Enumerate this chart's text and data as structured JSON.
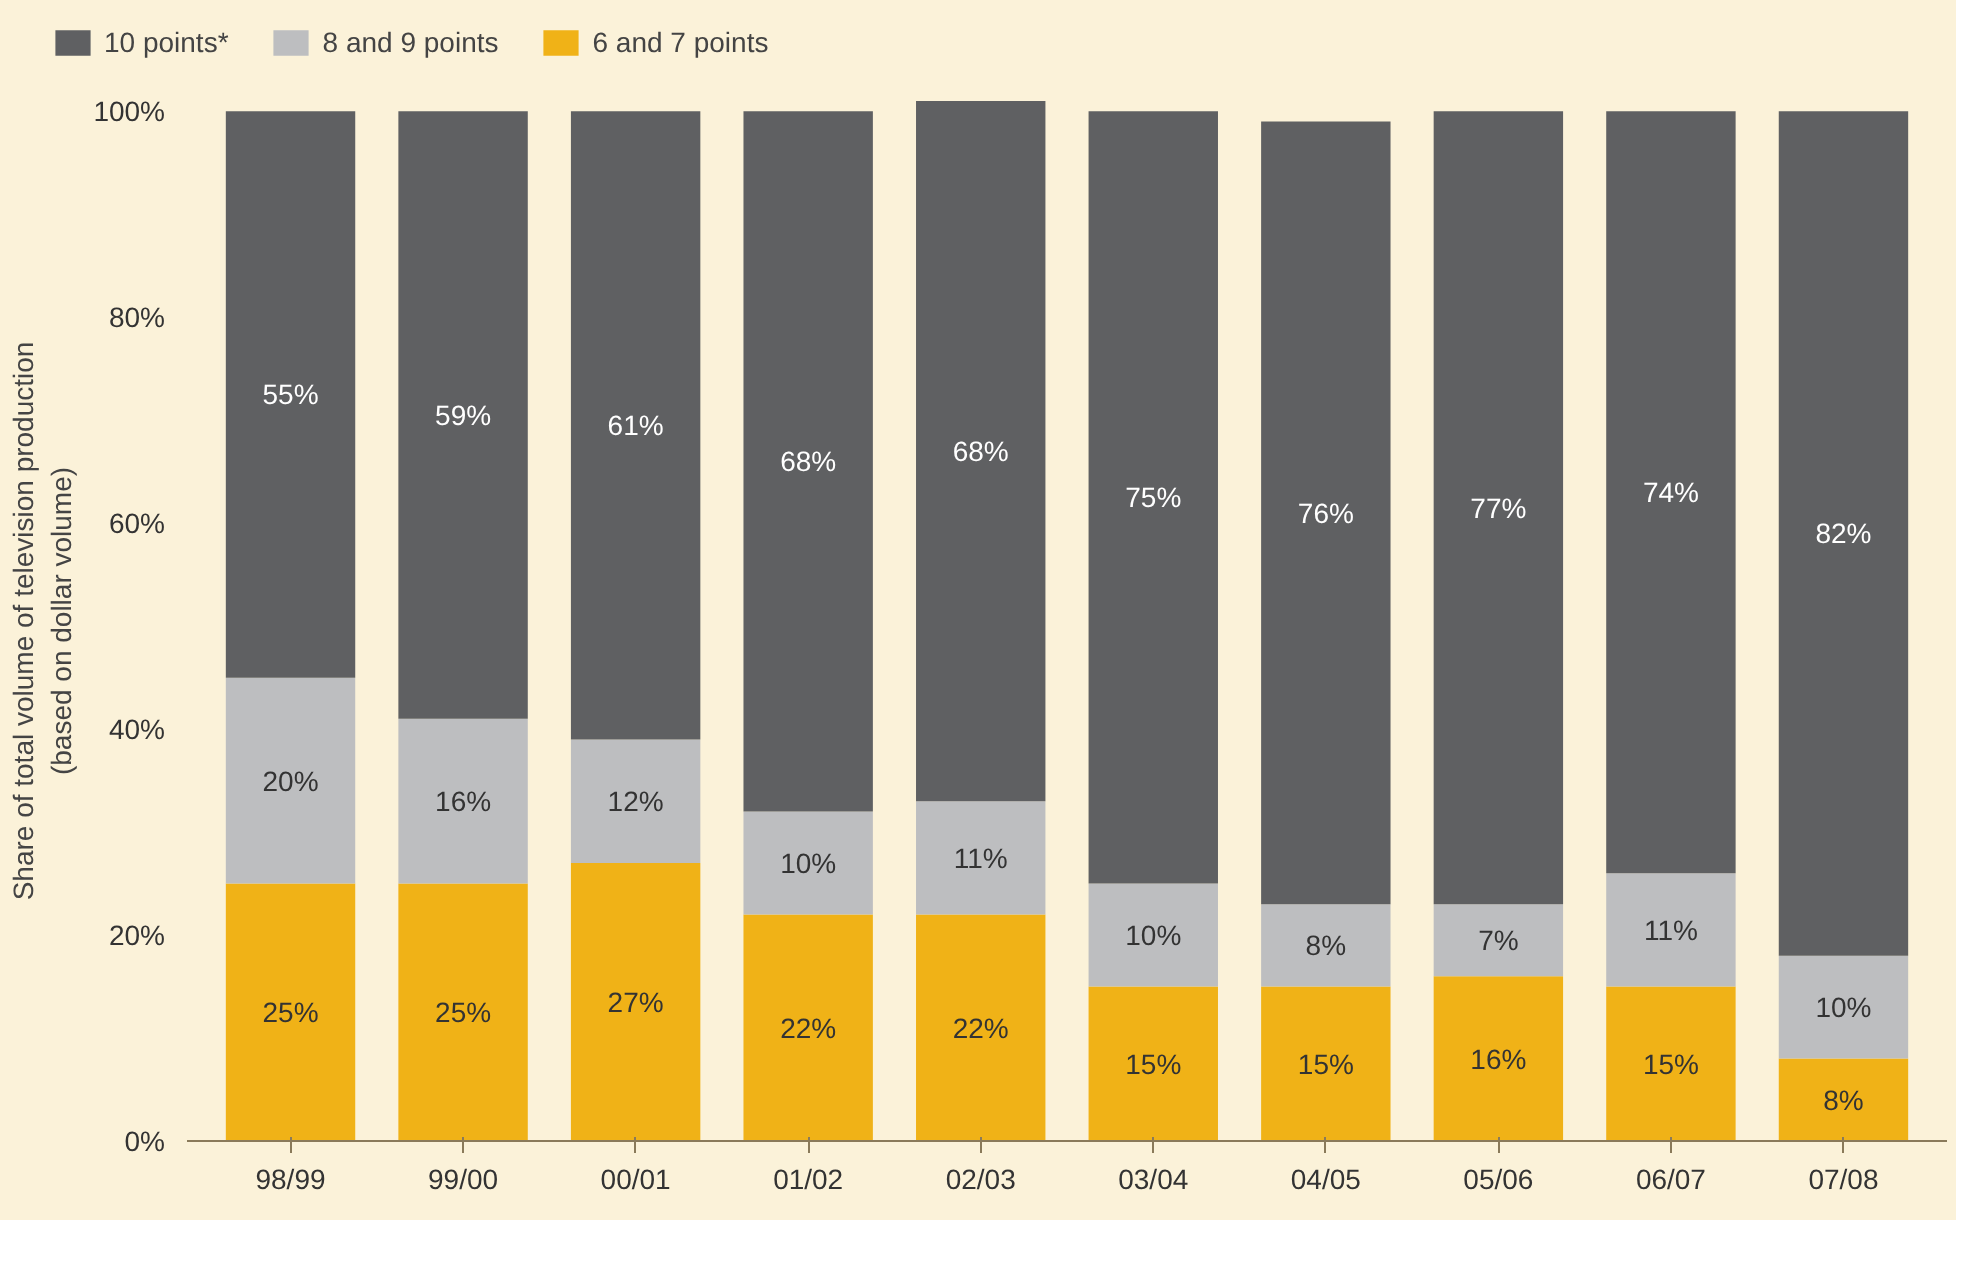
{
  "chart_data": {
    "type": "bar",
    "stacked": true,
    "categories": [
      "98/99",
      "99/00",
      "00/01",
      "01/02",
      "02/03",
      "03/04",
      "04/05",
      "05/06",
      "06/07",
      "07/08"
    ],
    "ylabel": "Share of total volume of television production\n(based on dollar volume)",
    "ylim": [
      0,
      101
    ],
    "yticks": [
      {
        "value": 0,
        "label": "0%"
      },
      {
        "value": 20,
        "label": "20%"
      },
      {
        "value": 40,
        "label": "40%"
      },
      {
        "value": 60,
        "label": "60%"
      },
      {
        "value": 80,
        "label": "80%"
      },
      {
        "value": 100,
        "label": "100%"
      }
    ],
    "grid": false,
    "legend": "top left",
    "series": [
      {
        "name": "6 and 7 points",
        "color": "#f0b217",
        "values": [
          25,
          25,
          27,
          22,
          22,
          15,
          15,
          16,
          15,
          8
        ],
        "value_labels": [
          "25%",
          "25%",
          "27%",
          "22%",
          "22%",
          "15%",
          "15%",
          "16%",
          "15%",
          "8%"
        ]
      },
      {
        "name": "8 and 9 points",
        "color": "#bdbec0",
        "values": [
          20,
          16,
          12,
          10,
          11,
          10,
          8,
          7,
          11,
          10
        ],
        "value_labels": [
          "20%",
          "16%",
          "12%",
          "10%",
          "11%",
          "10%",
          "8%",
          "7%",
          "11%",
          "10%"
        ]
      },
      {
        "name": "10 points*",
        "color": "#5f6062",
        "values": [
          55,
          59,
          61,
          68,
          68,
          75,
          76,
          77,
          74,
          82
        ],
        "value_labels": [
          "55%",
          "59%",
          "61%",
          "68%",
          "68%",
          "75%",
          "76%",
          "77%",
          "74%",
          "82%"
        ]
      }
    ]
  }
}
